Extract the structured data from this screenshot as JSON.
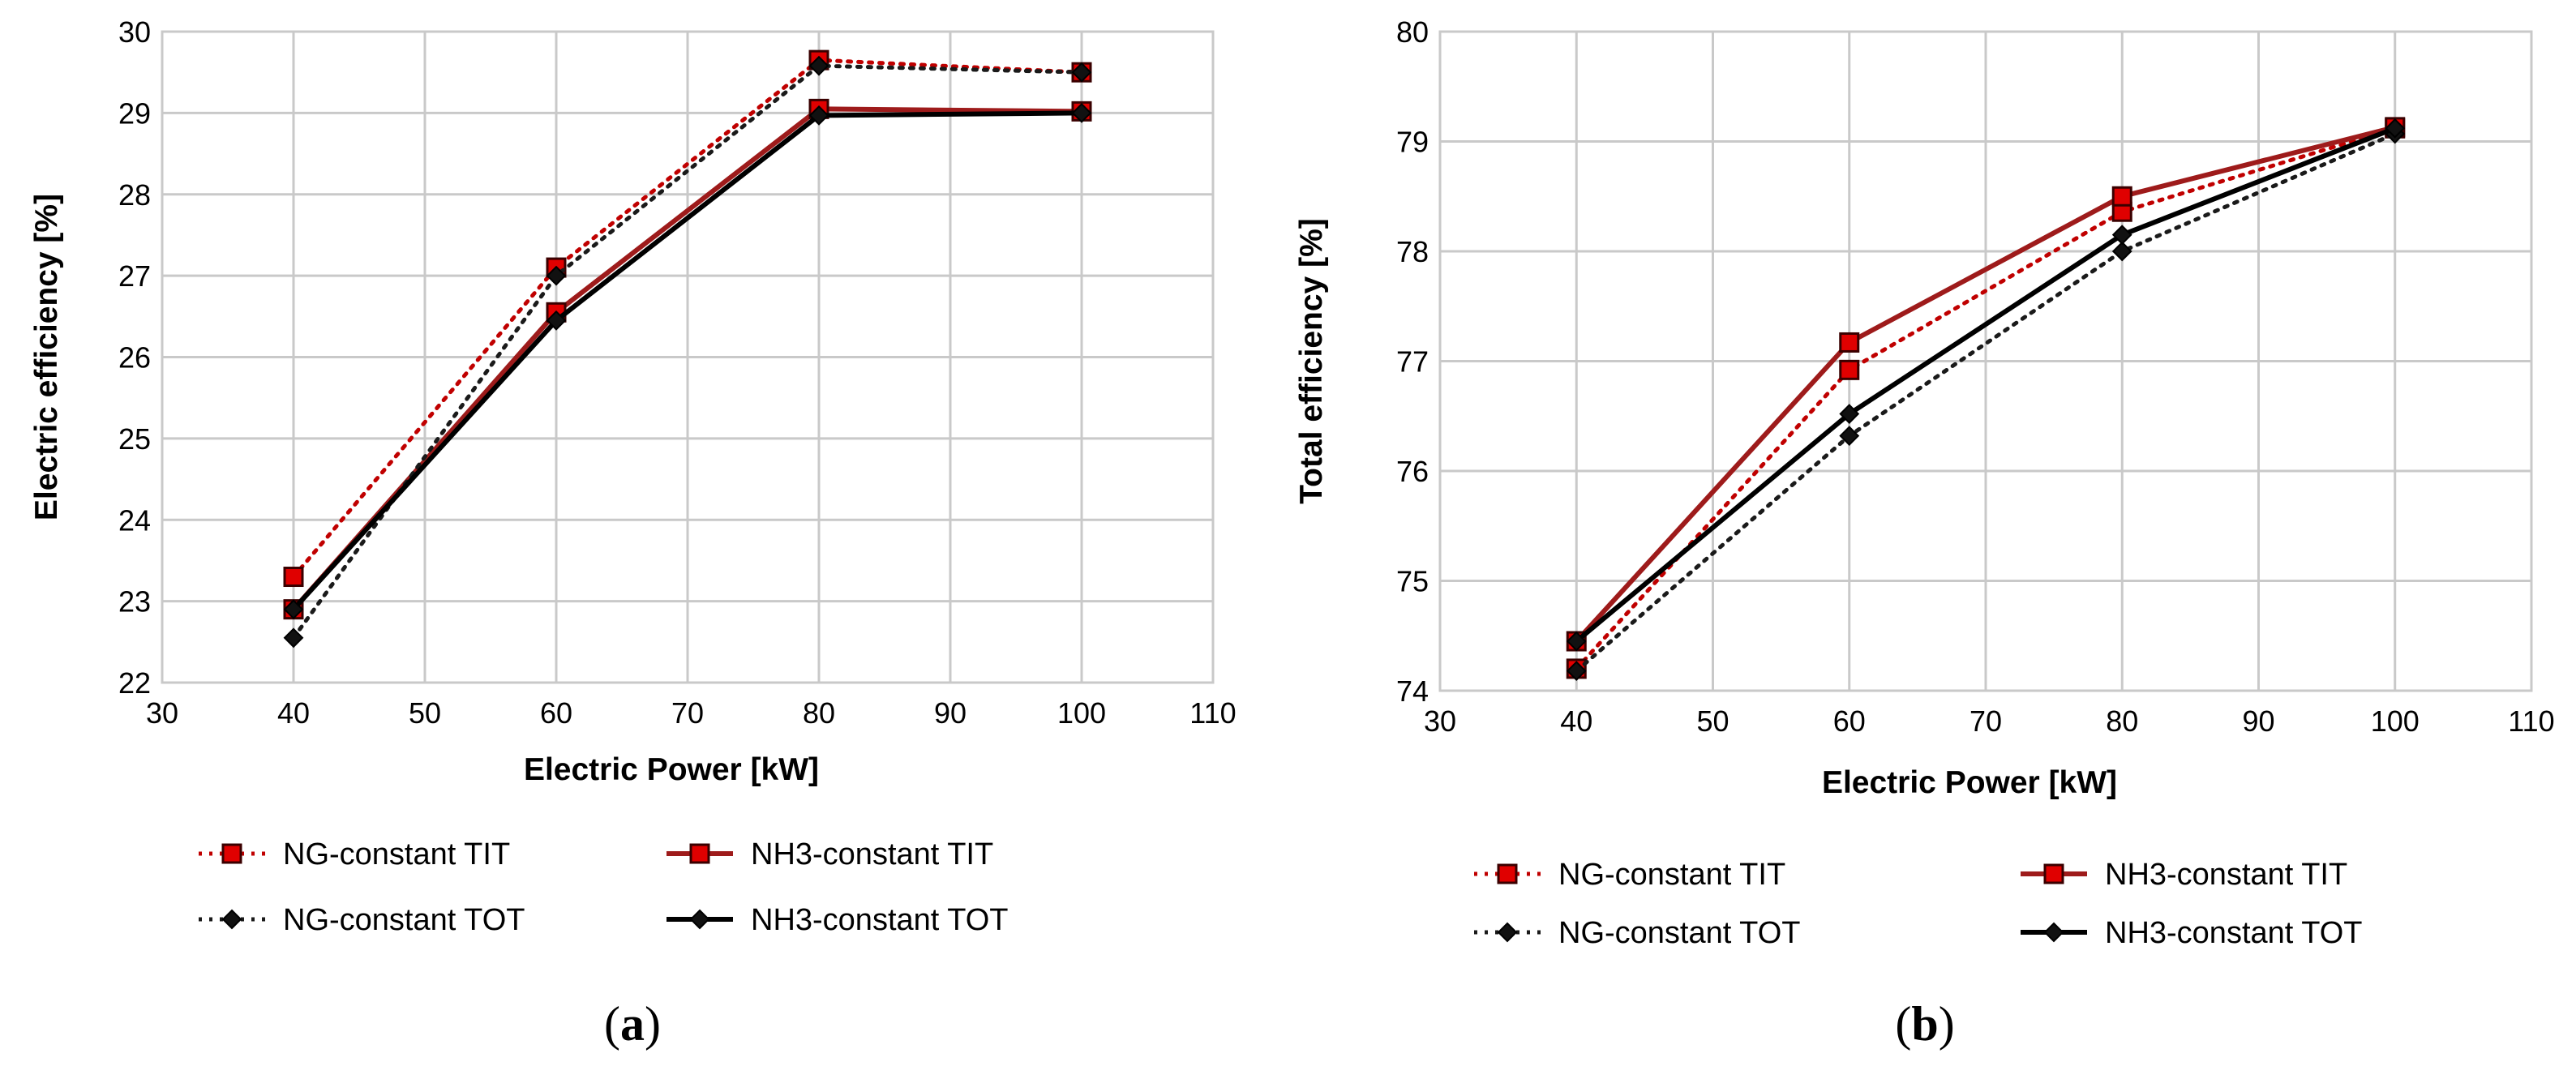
{
  "chart_data": [
    {
      "type": "line",
      "panel_label": "a",
      "xlabel": "Electric Power [kW]",
      "ylabel": "Electric efficiency [%]",
      "xlim": [
        30,
        110
      ],
      "ylim": [
        22,
        30
      ],
      "xticks": [
        "30",
        "40",
        "50",
        "60",
        "70",
        "80",
        "90",
        "100",
        "110"
      ],
      "yticks": [
        "22",
        "23",
        "24",
        "25",
        "26",
        "27",
        "28",
        "29",
        "30"
      ],
      "grid": true,
      "x": [
        40,
        60,
        80,
        100
      ],
      "series": [
        {
          "name": "NG-constant TIT",
          "values": [
            23.3,
            27.1,
            29.65,
            29.5
          ],
          "color": "#c00000",
          "dash": "dotted",
          "marker": "square"
        },
        {
          "name": "NH3-constant TIT",
          "values": [
            22.9,
            26.55,
            29.05,
            29.02
          ],
          "color": "#9e1b1b",
          "dash": "solid",
          "marker": "square"
        },
        {
          "name": "NG-constant TOT",
          "values": [
            22.55,
            27.0,
            29.58,
            29.5
          ],
          "color": "#1a1a1a",
          "dash": "dotted",
          "marker": "diamond"
        },
        {
          "name": "NH3-constant TOT",
          "values": [
            22.9,
            26.45,
            28.97,
            29.0
          ],
          "color": "#000000",
          "dash": "solid",
          "marker": "diamond"
        }
      ],
      "legend_placement": "bottom"
    },
    {
      "type": "line",
      "panel_label": "b",
      "xlabel": "Electric Power [kW]",
      "ylabel": "Total efficiency [%]",
      "xlim": [
        30,
        110
      ],
      "ylim": [
        74,
        80
      ],
      "xticks": [
        "30",
        "40",
        "50",
        "60",
        "70",
        "80",
        "90",
        "100",
        "110"
      ],
      "yticks": [
        "74",
        "75",
        "76",
        "77",
        "78",
        "79",
        "80"
      ],
      "grid": true,
      "x": [
        40,
        60,
        80,
        100
      ],
      "series": [
        {
          "name": "NG-constant TIT",
          "values": [
            74.2,
            76.92,
            78.36,
            79.12
          ],
          "color": "#c00000",
          "dash": "dotted",
          "marker": "square"
        },
        {
          "name": "NH3-constant TIT",
          "values": [
            74.45,
            77.17,
            78.5,
            79.13
          ],
          "color": "#9e1b1b",
          "dash": "solid",
          "marker": "square"
        },
        {
          "name": "NG-constant TOT",
          "values": [
            74.18,
            76.32,
            78.0,
            79.07
          ],
          "color": "#1a1a1a",
          "dash": "dotted",
          "marker": "diamond"
        },
        {
          "name": "NH3-constant TOT",
          "values": [
            74.45,
            76.52,
            78.15,
            79.12
          ],
          "color": "#000000",
          "dash": "solid",
          "marker": "diamond"
        }
      ],
      "legend_placement": "bottom"
    }
  ]
}
